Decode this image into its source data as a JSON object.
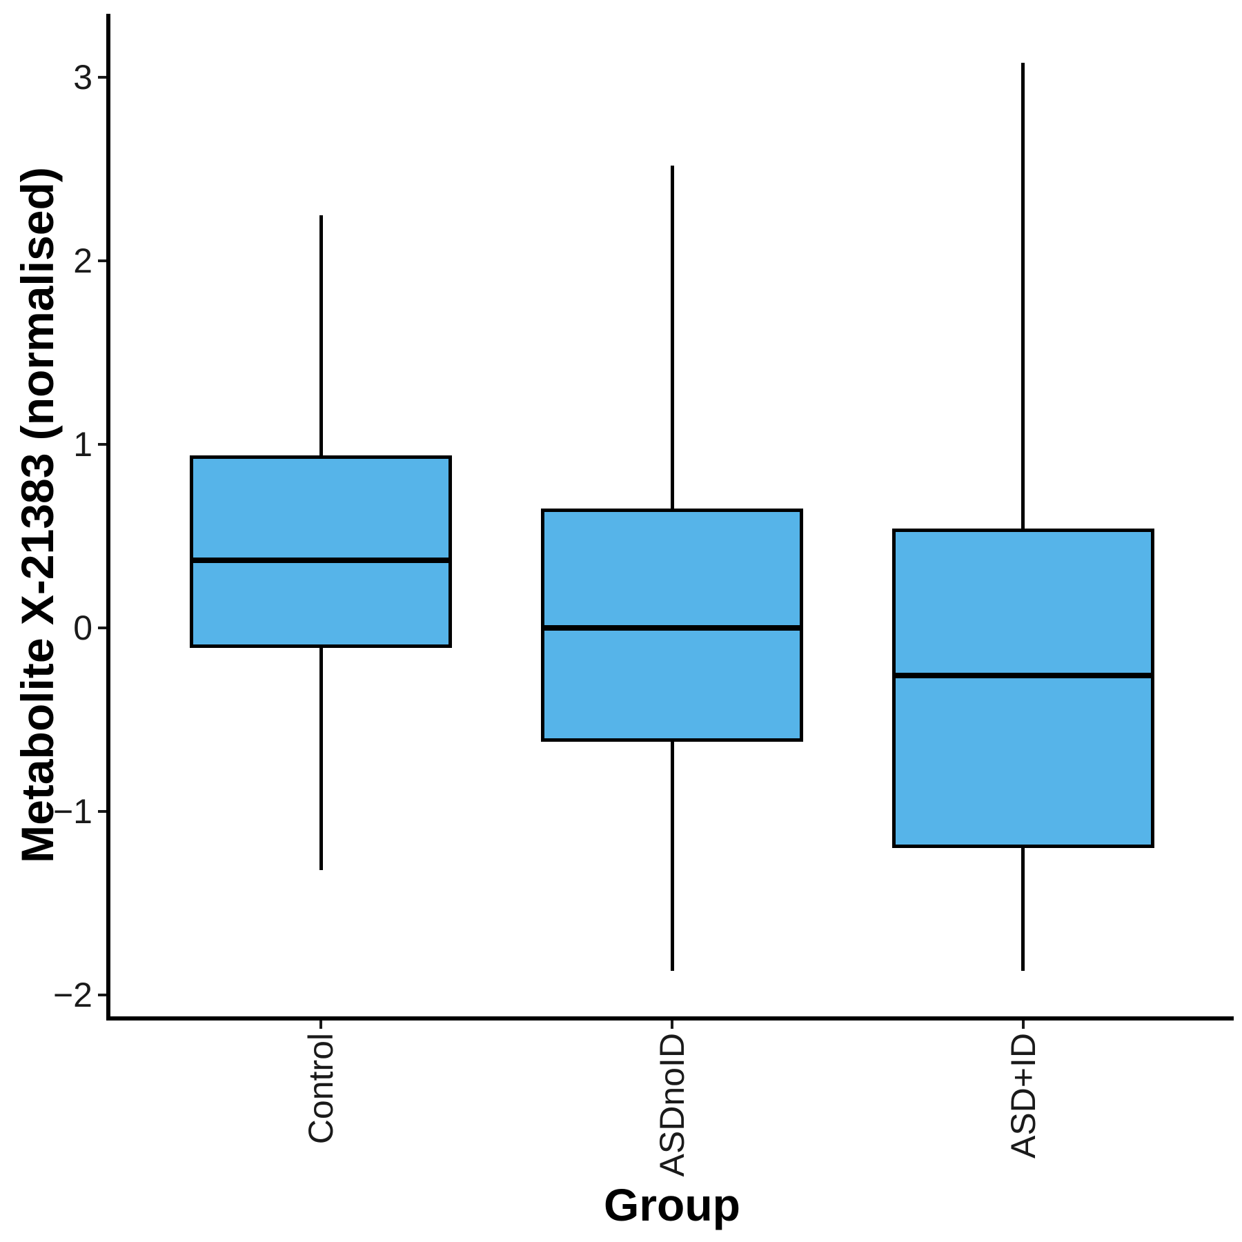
{
  "chart_data": {
    "type": "boxplot",
    "title": "",
    "xlabel": "Group",
    "ylabel": "Metabolite X-21383 (normalised)",
    "categories": [
      "Control",
      "ASDnoID",
      "ASD+ID"
    ],
    "y_axis": {
      "tick_values": [
        3,
        2,
        1,
        0,
        -1,
        -2
      ],
      "tick_labels": [
        "3",
        "2",
        "1",
        "0",
        "−1",
        "−2"
      ],
      "ylim": [
        -2.12,
        3.35
      ]
    },
    "series": [
      {
        "name": "Control",
        "whisker_low": -1.32,
        "q1": -0.11,
        "median": 0.37,
        "q3": 0.94,
        "whisker_high": 2.25
      },
      {
        "name": "ASDnoID",
        "whisker_low": -1.87,
        "q1": -0.62,
        "median": 0.0,
        "q3": 0.65,
        "whisker_high": 2.52
      },
      {
        "name": "ASD+ID",
        "whisker_low": -1.87,
        "q1": -1.2,
        "median": -0.26,
        "q3": 0.54,
        "whisker_high": 3.08
      }
    ],
    "style": {
      "box_fill": "#56B4E9",
      "box_border": "#000000",
      "median_color": "#000000",
      "axis_color": "#000000",
      "grid": "off",
      "legend": "none",
      "outliers": "none"
    }
  }
}
